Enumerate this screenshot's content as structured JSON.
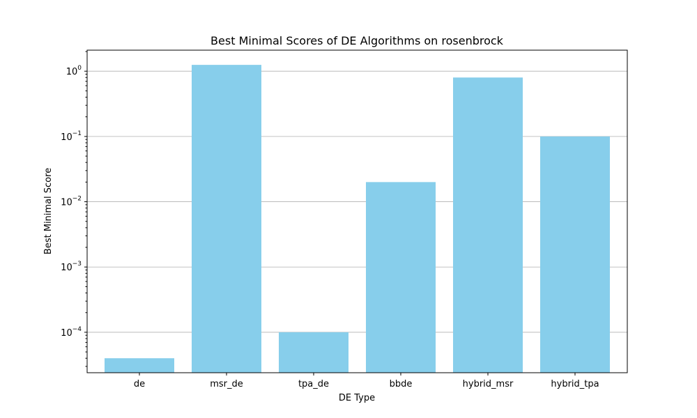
{
  "chart_data": {
    "type": "bar",
    "title": "Best Minimal Scores of DE Algorithms on rosenbrock",
    "xlabel": "DE Type",
    "ylabel": "Best Minimal Score",
    "yscale": "log",
    "categories": [
      "de",
      "msr_de",
      "tpa_de",
      "bbde",
      "hybrid_msr",
      "hybrid_tpa"
    ],
    "values": [
      4e-05,
      1.25,
      0.0001,
      0.02,
      0.8,
      0.1
    ],
    "ylim": [
      2.4e-05,
      2.1
    ],
    "yticks": [
      {
        "value": 0.0001,
        "base": "10",
        "exp": "−4"
      },
      {
        "value": 0.001,
        "base": "10",
        "exp": "−3"
      },
      {
        "value": 0.01,
        "base": "10",
        "exp": "−2"
      },
      {
        "value": 0.1,
        "base": "10",
        "exp": "−1"
      },
      {
        "value": 1,
        "base": "10",
        "exp": "0"
      }
    ],
    "grid": "y-major",
    "bar_color": "#87ceeb"
  }
}
